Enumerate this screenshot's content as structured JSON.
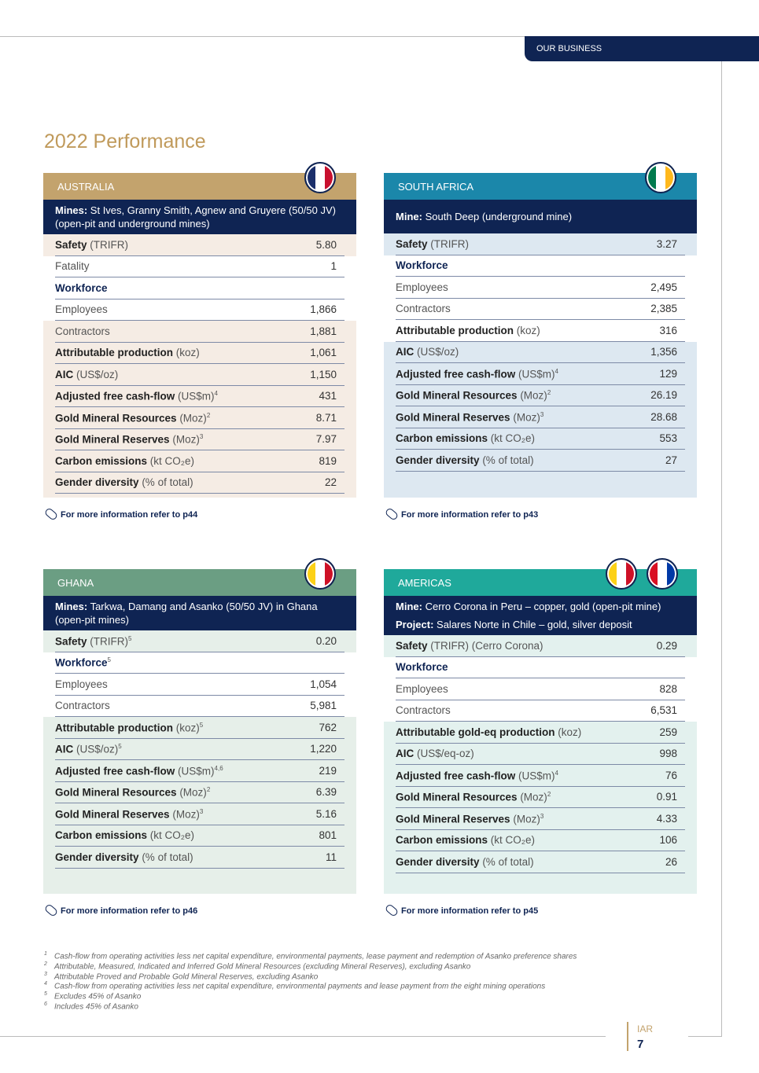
{
  "header": {
    "section": "OUR BUSINESS"
  },
  "title": "2022 Performance",
  "panels": [
    {
      "region": "AUSTRALIA",
      "color": "#c3a36d",
      "tint": "#f5ece4",
      "intro": [
        {
          "label": "Mines:",
          "text": "St Ives, Granny Smith, Agnew and Gruyere (50/50 JV) (open-pit and underground mines)"
        }
      ],
      "rows": [
        {
          "label": "Safety",
          "unit": "(TRIFR)",
          "value": "5.80",
          "style": "bold",
          "shaded": true
        },
        {
          "label": "Fatality",
          "value": "1",
          "style": "plain",
          "shaded": false
        },
        {
          "label": "Workforce",
          "style": "heading",
          "shaded": false
        },
        {
          "label": "Employees",
          "value": "1,866",
          "style": "plain",
          "shaded": false
        },
        {
          "label": "Contractors",
          "value": "1,881",
          "style": "plain",
          "shaded": true
        },
        {
          "label": "Attributable production",
          "unit": "(koz)",
          "value": "1,061",
          "style": "bold",
          "shaded": true
        },
        {
          "label": "AIC",
          "unit": "(US$/oz)",
          "value": "1,150",
          "style": "bold",
          "shaded": true
        },
        {
          "label": "Adjusted free cash-flow",
          "unit": "(US$m)",
          "sup": "4",
          "value": "431",
          "style": "bold",
          "shaded": true
        },
        {
          "label": "Gold Mineral Resources",
          "unit": "(Moz)",
          "sup": "2",
          "value": "8.71",
          "style": "bold",
          "shaded": true
        },
        {
          "label": "Gold Mineral Reserves",
          "unit": "(Moz)",
          "sup": "3",
          "value": "7.97",
          "style": "bold",
          "shaded": true
        },
        {
          "label": "Carbon emissions",
          "unit": "(kt CO₂e)",
          "value": "819",
          "style": "bold",
          "shaded": true
        },
        {
          "label": "Gender diversity",
          "unit": "(% of total)",
          "value": "22",
          "style": "bold",
          "shaded": true
        }
      ],
      "more": "For more information refer to p44"
    },
    {
      "region": "SOUTH AFRICA",
      "color": "#1b87aa",
      "tint": "#dde8f1",
      "intro": [
        {
          "label": "Mine:",
          "text": "South Deep (underground mine)"
        }
      ],
      "rows": [
        {
          "label": "Safety",
          "unit": "(TRIFR)",
          "value": "3.27",
          "style": "bold",
          "shaded": true
        },
        {
          "label": "Workforce",
          "style": "heading",
          "shaded": false
        },
        {
          "label": "Employees",
          "value": "2,495",
          "style": "plain",
          "shaded": false
        },
        {
          "label": "Contractors",
          "value": "2,385",
          "style": "plain",
          "shaded": false
        },
        {
          "label": "Attributable production",
          "unit": "(koz)",
          "value": "316",
          "style": "bold",
          "shaded": false
        },
        {
          "label": "AIC",
          "unit": "(US$/oz)",
          "value": "1,356",
          "style": "bold",
          "shaded": true
        },
        {
          "label": "Adjusted free cash-flow",
          "unit": "(US$m)",
          "sup": "4",
          "value": "129",
          "style": "bold",
          "shaded": true
        },
        {
          "label": "Gold Mineral Resources",
          "unit": "(Moz)",
          "sup": "2",
          "value": "26.19",
          "style": "bold",
          "shaded": true
        },
        {
          "label": "Gold Mineral Reserves",
          "unit": "(Moz)",
          "sup": "3",
          "value": "28.68",
          "style": "bold",
          "shaded": true
        },
        {
          "label": "Carbon emissions",
          "unit": "(kt CO₂e)",
          "value": "553",
          "style": "bold",
          "shaded": true
        },
        {
          "label": "Gender diversity",
          "unit": "(% of total)",
          "value": "27",
          "style": "bold",
          "shaded": true
        }
      ],
      "more": "For more information refer to p43"
    },
    {
      "region": "GHANA",
      "color": "#6b9e83",
      "tint": "#e6efe9",
      "intro": [
        {
          "label": "Mines:",
          "text": "Tarkwa, Damang and Asanko (50/50 JV) in Ghana (open-pit mines)"
        }
      ],
      "rows": [
        {
          "label": "Safety",
          "unit": "(TRIFR)",
          "sup": "5",
          "value": "0.20",
          "style": "bold",
          "shaded": true
        },
        {
          "label": "Workforce",
          "sup": "5",
          "style": "heading",
          "shaded": false
        },
        {
          "label": "Employees",
          "value": "1,054",
          "style": "plain",
          "shaded": false
        },
        {
          "label": "Contractors",
          "value": "5,981",
          "style": "plain",
          "shaded": false
        },
        {
          "label": "Attributable production",
          "unit": "(koz)",
          "sup": "5",
          "value": "762",
          "style": "bold",
          "shaded": true
        },
        {
          "label": "AIC",
          "unit": "(US$/oz)",
          "sup": "5",
          "value": "1,220",
          "style": "bold",
          "shaded": true
        },
        {
          "label": "Adjusted free cash-flow",
          "unit": "(US$m)",
          "sup": "4,6",
          "value": "219",
          "style": "bold",
          "shaded": true
        },
        {
          "label": "Gold Mineral Resources",
          "unit": "(Moz)",
          "sup": "2",
          "value": "6.39",
          "style": "bold",
          "shaded": true
        },
        {
          "label": "Gold Mineral Reserves",
          "unit": "(Moz)",
          "sup": "3",
          "value": "5.16",
          "style": "bold",
          "shaded": true
        },
        {
          "label": "Carbon emissions",
          "unit": "(kt CO₂e)",
          "value": "801",
          "style": "bold",
          "shaded": true
        },
        {
          "label": "Gender diversity",
          "unit": "(% of total)",
          "value": "11",
          "style": "bold",
          "shaded": true
        }
      ],
      "more": "For more information refer to p46"
    },
    {
      "region": "AMERICAS",
      "color": "#1fa99b",
      "tint": "#e3f1ee",
      "intro": [
        {
          "label": "Mine:",
          "text": "Cerro Corona in Peru – copper, gold (open-pit mine)"
        },
        {
          "label": "Project:",
          "text": "Salares Norte in Chile – gold, silver deposit"
        }
      ],
      "rows": [
        {
          "label": "Safety",
          "unit": "(TRIFR) (Cerro Corona)",
          "value": "0.29",
          "style": "bold",
          "shaded": true
        },
        {
          "label": "Workforce",
          "style": "heading",
          "shaded": false
        },
        {
          "label": "Employees",
          "value": "828",
          "style": "plain",
          "shaded": false
        },
        {
          "label": "Contractors",
          "value": "6,531",
          "style": "plain",
          "shaded": false
        },
        {
          "label": "Attributable gold-eq production",
          "unit": "(koz)",
          "value": "259",
          "style": "bold",
          "shaded": true
        },
        {
          "label": "AIC",
          "unit": "(US$/eq-oz)",
          "value": "998",
          "style": "bold",
          "shaded": true
        },
        {
          "label": "Adjusted free cash-flow",
          "unit": "(US$m)",
          "sup": "4",
          "value": "76",
          "style": "bold",
          "shaded": true
        },
        {
          "label": "Gold Mineral Resources",
          "unit": "(Moz)",
          "sup": "2",
          "value": "0.91",
          "style": "bold",
          "shaded": true
        },
        {
          "label": "Gold Mineral Reserves",
          "unit": "(Moz)",
          "sup": "3",
          "value": "4.33",
          "style": "bold",
          "shaded": true
        },
        {
          "label": "Carbon emissions",
          "unit": "(kt CO₂e)",
          "value": "106",
          "style": "bold",
          "shaded": true
        },
        {
          "label": "Gender diversity",
          "unit": "(% of total)",
          "value": "26",
          "style": "bold",
          "shaded": true
        }
      ],
      "more": "For more information refer to p45"
    }
  ],
  "footnotes": [
    {
      "mark": "1",
      "text": "Cash-flow from operating activities less net capital expenditure, environmental payments, lease payment and redemption of Asanko preference shares"
    },
    {
      "mark": "2",
      "text": "Attributable, Measured, Indicated and Inferred Gold Mineral Resources (excluding Mineral Reserves), excluding Asanko"
    },
    {
      "mark": "3",
      "text": "Attributable Proved and Probable Gold Mineral Reserves, excluding Asanko"
    },
    {
      "mark": "4",
      "text": "Cash-flow from operating activities less net capital expenditure, environmental payments and lease payment from the eight mining operations"
    },
    {
      "mark": "5",
      "text": "Excludes 45% of Asanko"
    },
    {
      "mark": "6",
      "text": "Includes 45% of Asanko"
    }
  ],
  "footer": {
    "label": "IAR",
    "page": "7"
  }
}
